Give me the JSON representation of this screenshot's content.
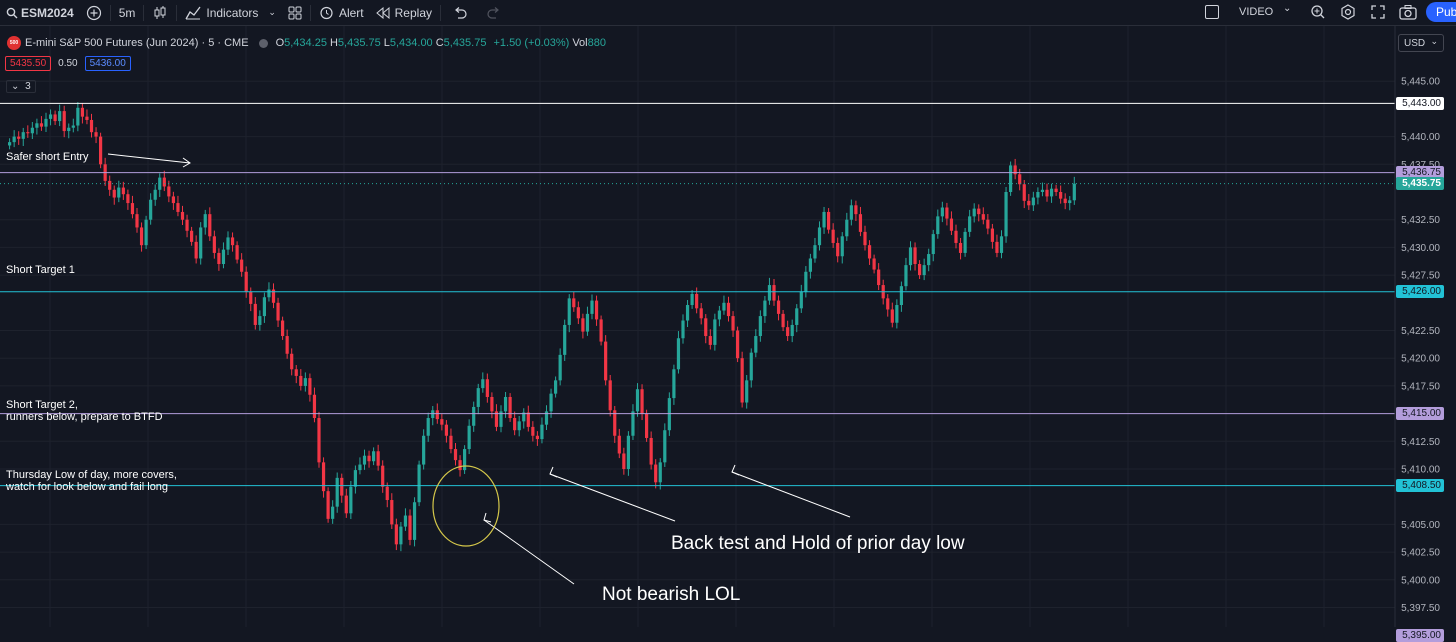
{
  "toolbar": {
    "symbol": "ESM2024",
    "interval": "5m",
    "indicators_label": "Indicators",
    "alert_label": "Alert",
    "replay_label": "Replay",
    "video_label": "VIDEO",
    "publish_label": "Pub"
  },
  "legend": {
    "logo_text": "500",
    "title": "E-mini S&P 500 Futures (Jun 2024) · 5 · CME",
    "o_label": "O",
    "o": "5,434.25",
    "h_label": "H",
    "h": "5,435.75",
    "l_label": "L",
    "l": "5,434.00",
    "c_label": "C",
    "c": "5,435.75",
    "change": "+1.50 (+0.03%)",
    "vol_label": "Vol",
    "vol": "880"
  },
  "quote": {
    "bid": "5435.50",
    "spread": "0.50",
    "ask": "5436.00"
  },
  "collapsed_count": "3",
  "currency": "USD",
  "colors": {
    "up": "#26a69a",
    "down": "#f23645",
    "bg": "#131722",
    "grid": "#1e222d",
    "cyan_line": "#22c2d6",
    "purple_line": "#b39ddb",
    "accent": "#2962ff"
  },
  "annotations": {
    "safer_short": "Safer short Entry",
    "target1": "Short Target 1",
    "target2_l1": "Short Target 2,",
    "target2_l2": "runners below, prepare to BTFD",
    "thursday_l1": "Thursday Low of day, more covers,",
    "thursday_l2": "watch for look below and fail long",
    "backtest": "Back test and Hold of prior day low",
    "not_bearish": "Not bearish LOL"
  },
  "chart_data": {
    "type": "candlestick",
    "interval": "5m",
    "price_axis_ticks": [
      "5,445.00",
      "5,440.00",
      "5,437.50",
      "5,432.50",
      "5,430.00",
      "5,427.50",
      "5,422.50",
      "5,420.00",
      "5,417.50",
      "5,412.50",
      "5,410.00",
      "5,405.00",
      "5,402.50",
      "5,400.00",
      "5,397.50"
    ],
    "ylim": [
      5393.5,
      5448.5
    ],
    "current_price": "5,435.75",
    "horizontal_levels": [
      {
        "price": 5443.0,
        "label": "5,443.00",
        "style": "white"
      },
      {
        "price": 5436.75,
        "label": "5,436.75",
        "style": "purple"
      },
      {
        "price": 5426.0,
        "label": "5,426.00",
        "style": "cyan"
      },
      {
        "price": 5415.0,
        "label": "5,415.00",
        "style": "purple"
      },
      {
        "price": 5408.5,
        "label": "5,408.50",
        "style": "cyan"
      },
      {
        "price": 5395.0,
        "label": "5,395.00",
        "style": "purple"
      }
    ],
    "close_path": [
      5439.5,
      5440.0,
      5439.8,
      5440.4,
      5440.3,
      5440.8,
      5441.2,
      5440.9,
      5441.6,
      5442.0,
      5441.4,
      5442.3,
      5440.5,
      5440.8,
      5441.0,
      5442.6,
      5441.8,
      5441.5,
      5440.4,
      5440.0,
      5437.5,
      5436.0,
      5435.2,
      5434.5,
      5435.4,
      5434.8,
      5434.0,
      5433.0,
      5431.8,
      5430.2,
      5432.5,
      5434.3,
      5435.2,
      5436.3,
      5435.5,
      5434.6,
      5434.0,
      5433.2,
      5432.5,
      5431.5,
      5430.5,
      5429.0,
      5431.8,
      5433.0,
      5431.0,
      5429.5,
      5428.5,
      5429.8,
      5430.9,
      5430.2,
      5428.9,
      5427.8,
      5426.0,
      5424.9,
      5423.0,
      5423.8,
      5425.5,
      5426.2,
      5425.0,
      5423.4,
      5422.0,
      5420.4,
      5419.0,
      5418.4,
      5417.5,
      5418.2,
      5416.7,
      5414.6,
      5410.6,
      5408.0,
      5405.5,
      5406.6,
      5409.2,
      5407.6,
      5406.0,
      5408.4,
      5409.9,
      5410.4,
      5411.2,
      5410.7,
      5411.6,
      5410.3,
      5408.4,
      5407.2,
      5405.0,
      5403.2,
      5404.8,
      5405.8,
      5403.6,
      5407.0,
      5410.4,
      5413.0,
      5414.6,
      5415.3,
      5414.5,
      5414.0,
      5413.0,
      5411.8,
      5410.8,
      5409.9,
      5411.8,
      5413.9,
      5415.6,
      5417.3,
      5418.1,
      5416.5,
      5415.2,
      5413.8,
      5415.2,
      5416.5,
      5414.6,
      5413.5,
      5414.3,
      5415.1,
      5413.8,
      5413.0,
      5412.7,
      5414.0,
      5415.2,
      5416.8,
      5418.0,
      5420.3,
      5423.0,
      5425.4,
      5424.6,
      5423.6,
      5422.4,
      5424.0,
      5425.2,
      5423.5,
      5421.5,
      5418.0,
      5415.3,
      5413.0,
      5411.4,
      5410.0,
      5413.0,
      5415.2,
      5417.2,
      5415.0,
      5412.8,
      5410.4,
      5408.8,
      5410.6,
      5413.5,
      5416.4,
      5419.0,
      5421.8,
      5423.4,
      5424.8,
      5425.8,
      5424.5,
      5423.6,
      5422.0,
      5421.2,
      5423.5,
      5424.3,
      5425.0,
      5423.8,
      5422.5,
      5420.0,
      5416.0,
      5418.0,
      5420.5,
      5422.0,
      5423.8,
      5425.2,
      5426.6,
      5425.2,
      5424.0,
      5422.8,
      5422.0,
      5423.0,
      5424.5,
      5426.0,
      5427.8,
      5429.0,
      5430.2,
      5431.8,
      5433.2,
      5431.6,
      5430.4,
      5429.2,
      5431.0,
      5432.5,
      5433.8,
      5433.0,
      5431.4,
      5430.2,
      5429.0,
      5428.0,
      5426.6,
      5425.4,
      5424.4,
      5423.2,
      5424.8,
      5426.5,
      5428.4,
      5430.0,
      5428.5,
      5427.5,
      5428.4,
      5429.4,
      5431.2,
      5432.8,
      5433.6,
      5432.6,
      5431.5,
      5430.4,
      5429.5,
      5431.4,
      5432.8,
      5433.5,
      5433.0,
      5432.5,
      5431.7,
      5430.5,
      5429.5,
      5431.0,
      5435.0,
      5437.4,
      5436.6,
      5435.7,
      5434.2,
      5433.8,
      5434.5,
      5435.0,
      5435.2,
      5434.6,
      5435.3,
      5435.0,
      5434.4,
      5434.0,
      5434.25,
      5435.75
    ]
  }
}
